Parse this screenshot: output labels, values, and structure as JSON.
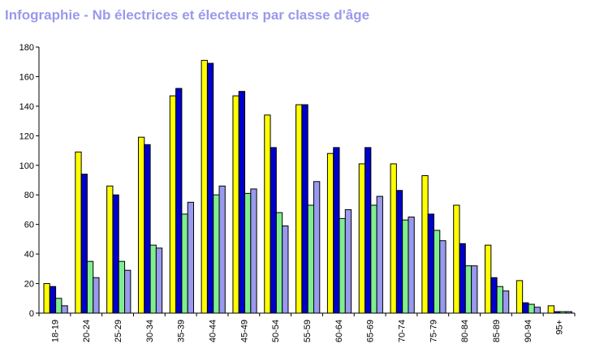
{
  "chart_data": {
    "type": "bar",
    "title": "Infographie - Nb électrices et électeurs par classe d'âge",
    "xlabel": "",
    "ylabel": "",
    "ylim": [
      0,
      180
    ],
    "yticks": [
      0,
      20,
      40,
      60,
      80,
      100,
      120,
      140,
      160,
      180
    ],
    "grid": false,
    "legend": "none",
    "categories": [
      "18-19",
      "20-24",
      "25-29",
      "30-34",
      "35-39",
      "40-44",
      "45-49",
      "50-54",
      "55-59",
      "60-64",
      "65-69",
      "70-74",
      "75-79",
      "80-84",
      "85-89",
      "90-94",
      "95+"
    ],
    "series": [
      {
        "color": "#ffff00",
        "values": [
          20,
          109,
          86,
          119,
          147,
          171,
          147,
          134,
          141,
          108,
          101,
          101,
          93,
          73,
          46,
          22,
          5
        ]
      },
      {
        "color": "#0000cc",
        "values": [
          18,
          94,
          80,
          114,
          152,
          169,
          150,
          112,
          141,
          112,
          112,
          83,
          67,
          47,
          24,
          7,
          1
        ]
      },
      {
        "color": "#80ee90",
        "values": [
          10,
          35,
          35,
          46,
          67,
          80,
          81,
          68,
          73,
          64,
          73,
          63,
          56,
          32,
          18,
          6,
          1
        ]
      },
      {
        "color": "#9999ee",
        "values": [
          5,
          24,
          29,
          44,
          75,
          86,
          84,
          59,
          89,
          70,
          79,
          65,
          49,
          32,
          15,
          4,
          1
        ]
      }
    ]
  }
}
